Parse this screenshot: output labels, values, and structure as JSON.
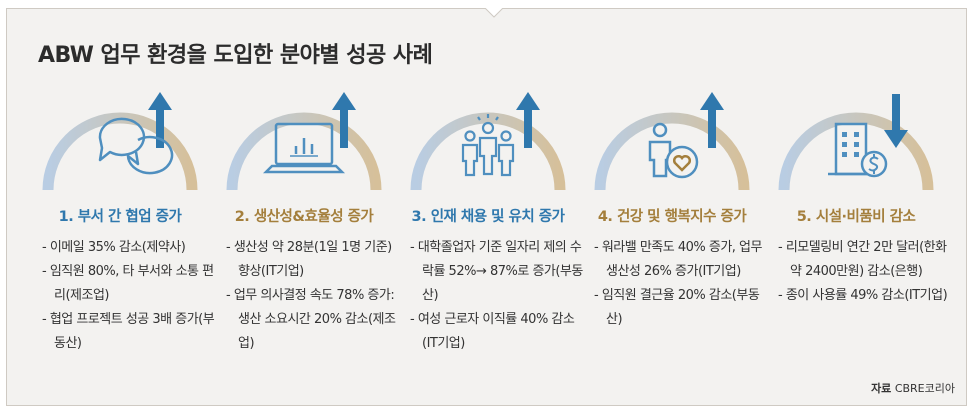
{
  "title": "ABW 업무 환경을 도입한 분야별 성공 사례",
  "colors": {
    "arc_left": "#b9cde3",
    "arc_right": "#d6c09a",
    "up_arrow": "#2f78ad",
    "down_arrow": "#2f78ad",
    "icon_line": "#4f8fbf",
    "title_blue": "#2f78ad",
    "title_gold": "#a47f3c"
  },
  "cards": [
    {
      "title": "1. 부서 간 협업 증가",
      "icon": "speech-bubbles-icon",
      "arrow": "up",
      "bullets": [
        "- 이메일 35% 감소(제약사)",
        "- 임직원 80%, 타 부서와 소통 편리(제조업)",
        "- 협업 프로젝트 성공 3배 증가(부동산)"
      ]
    },
    {
      "title": "2. 생산성&효율성 증가",
      "icon": "laptop-chart-icon",
      "arrow": "up",
      "bullets": [
        "- 생산성 약 28분(1일 1명 기준) 향상(IT기업)",
        "- 업무 의사결정 속도 78% 증가: 생산 소요시간 20% 감소(제조업)"
      ]
    },
    {
      "title": "3. 인재 채용 및 유치 증가",
      "icon": "people-group-icon",
      "arrow": "up",
      "bullets": [
        "- 대학졸업자 기준 일자리 제의 수락률 52%→ 87%로 증가(부동산)",
        "- 여성 근로자 이직률 40% 감소(IT기업)"
      ]
    },
    {
      "title": "4. 건강 및 행복지수 증가",
      "icon": "person-heart-icon",
      "arrow": "up",
      "bullets": [
        "- 워라밸 만족도 40% 증가, 업무생산성 26% 증가(IT기업)",
        "- 임직원 결근율 20% 감소(부동산)"
      ]
    },
    {
      "title": "5. 시설·비품비 감소",
      "icon": "building-dollar-icon",
      "arrow": "down",
      "bullets": [
        "- 리모델링비 연간 2만 달러(한화 약 2400만원) 감소(은행)",
        "- 종이 사용률 49% 감소(IT기업)"
      ]
    }
  ],
  "source": {
    "label": "자료",
    "value": "CBRE코리아"
  }
}
